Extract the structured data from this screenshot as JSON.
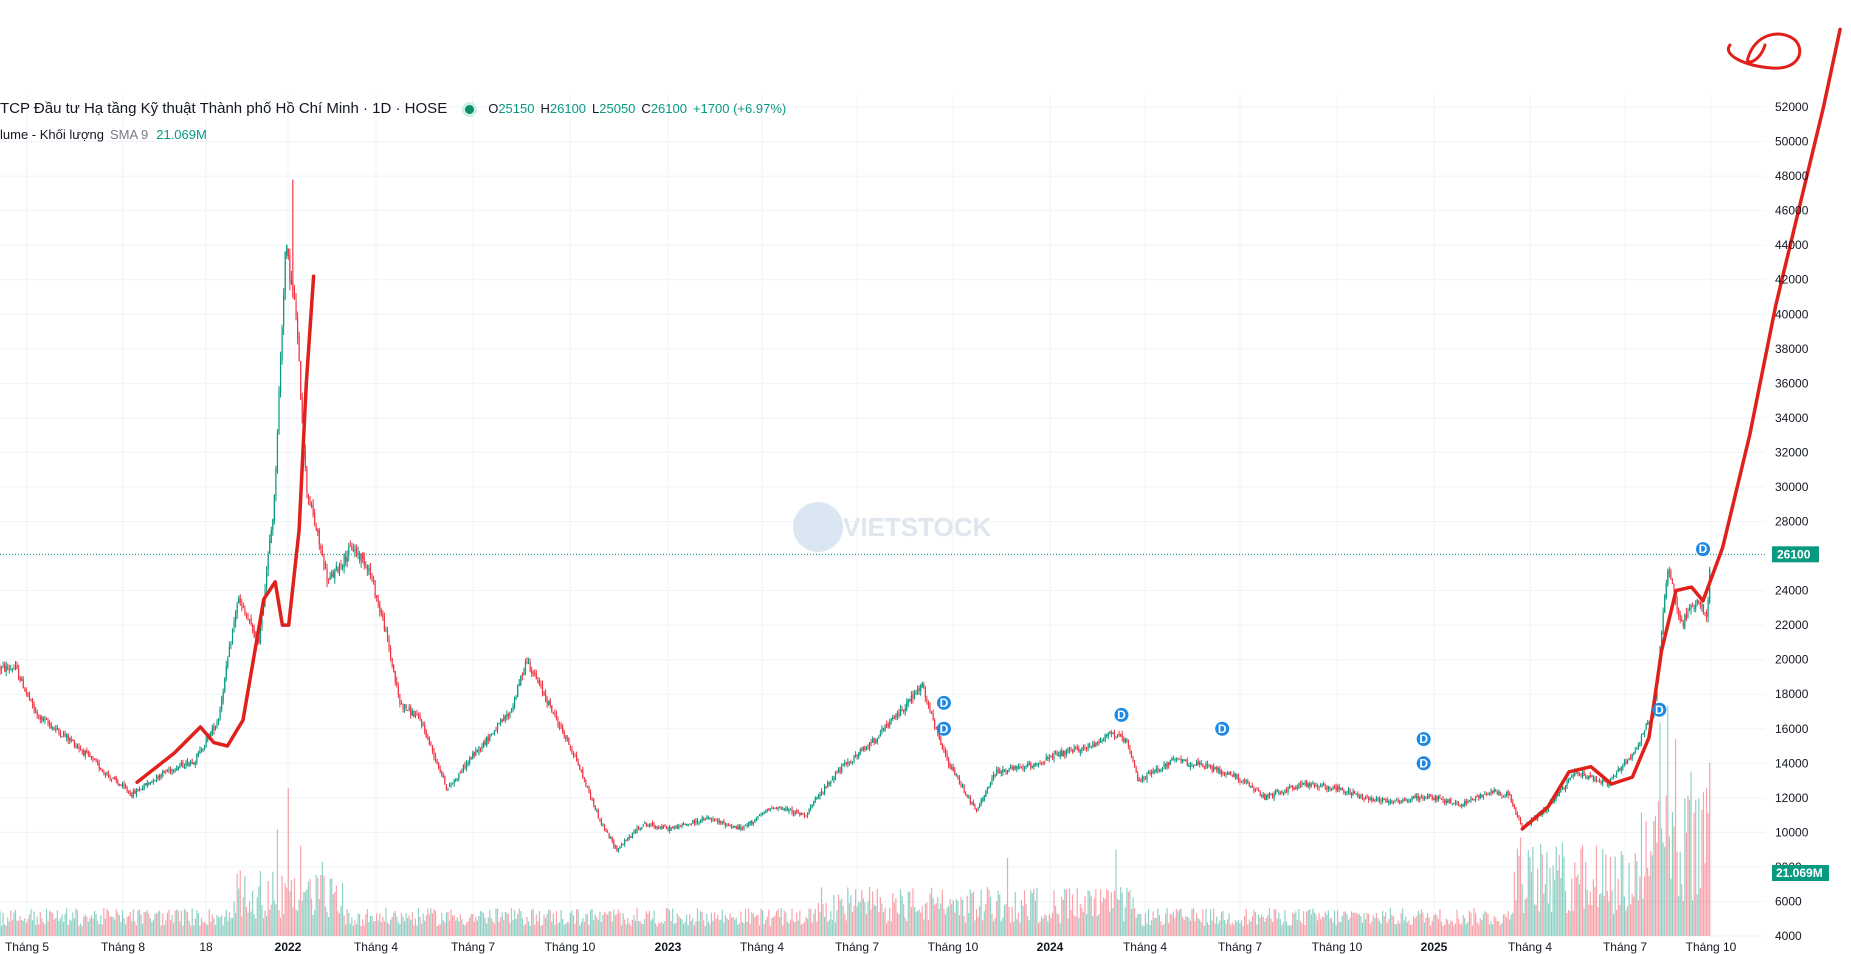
{
  "legend": {
    "title": "TCP Đầu tư Hạ tầng Kỹ thuật Thành phố Hồ Chí Minh · 1D · HOSE",
    "open_key": "O",
    "open": "25150",
    "high_key": "H",
    "high": "26100",
    "low_key": "L",
    "low": "25050",
    "close_key": "C",
    "close": "26100",
    "change": "+1700 (+6.97%)",
    "volume_label": "lume - Khối lượng",
    "sma_label": "SMA 9",
    "volume_value": "21.069M"
  },
  "watermark": "VIETSTOCK",
  "colors": {
    "up": "#089981",
    "down": "#f23645",
    "annotation": "#e0201b",
    "dividend": "#1e88e5",
    "price_line": "#089981"
  },
  "chart_data": {
    "type": "candlestick",
    "y_axis": {
      "min": 4000,
      "max": 53000,
      "ticks": [
        4000,
        6000,
        8000,
        10000,
        12000,
        14000,
        16000,
        18000,
        20000,
        22000,
        24000,
        26000,
        28000,
        30000,
        32000,
        34000,
        36000,
        38000,
        40000,
        42000,
        44000,
        46000,
        48000,
        50000,
        52000
      ]
    },
    "x_axis": {
      "labels": [
        "Tháng 5",
        "Tháng 8",
        "18",
        "2022",
        "Tháng 4",
        "Tháng 7",
        "Tháng 10",
        "2023",
        "Tháng 4",
        "Tháng 7",
        "Tháng 10",
        "2024",
        "Tháng 4",
        "Tháng 7",
        "Tháng 10",
        "2025",
        "Tháng 4",
        "Tháng 7",
        "Tháng 10"
      ],
      "bold": [
        "2022",
        "2023",
        "2024",
        "2025"
      ]
    },
    "last_price": {
      "value": 26100,
      "label": "26100"
    },
    "last_volume": {
      "label": "21.069M"
    },
    "price_path": [
      [
        "2021-04-20",
        19500
      ],
      [
        "2021-05-10",
        16800
      ],
      [
        "2021-06-15",
        15200
      ],
      [
        "2021-07-20",
        13200
      ],
      [
        "2021-08-10",
        12200
      ],
      [
        "2021-09-10",
        13500
      ],
      [
        "2021-10-10",
        14200
      ],
      [
        "2021-11-01",
        16500
      ],
      [
        "2021-11-20",
        23500
      ],
      [
        "2021-12-10",
        21000
      ],
      [
        "2021-12-25",
        29000
      ],
      [
        "2022-01-05",
        44000
      ],
      [
        "2022-01-15",
        40000
      ],
      [
        "2022-01-25",
        30000
      ],
      [
        "2022-02-15",
        24500
      ],
      [
        "2022-03-10",
        26500
      ],
      [
        "2022-03-25",
        25500
      ],
      [
        "2022-04-10",
        22000
      ],
      [
        "2022-04-25",
        17500
      ],
      [
        "2022-05-15",
        16500
      ],
      [
        "2022-06-10",
        12500
      ],
      [
        "2022-07-05",
        14500
      ],
      [
        "2022-08-10",
        17000
      ],
      [
        "2022-08-25",
        20000
      ],
      [
        "2022-09-15",
        17500
      ],
      [
        "2022-10-10",
        14500
      ],
      [
        "2022-11-05",
        10500
      ],
      [
        "2022-11-20",
        9000
      ],
      [
        "2022-12-15",
        10500
      ],
      [
        "2023-01-10",
        10200
      ],
      [
        "2023-02-15",
        10800
      ],
      [
        "2023-03-20",
        10200
      ],
      [
        "2023-04-20",
        11500
      ],
      [
        "2023-05-20",
        11000
      ],
      [
        "2023-06-20",
        13500
      ],
      [
        "2023-07-20",
        15000
      ],
      [
        "2023-08-20",
        17000
      ],
      [
        "2023-09-10",
        18500
      ],
      [
        "2023-09-20",
        16500
      ],
      [
        "2023-10-05",
        14000
      ],
      [
        "2023-10-20",
        12500
      ],
      [
        "2023-11-01",
        11200
      ],
      [
        "2023-11-20",
        13500
      ],
      [
        "2023-12-20",
        13800
      ],
      [
        "2024-01-20",
        14500
      ],
      [
        "2024-02-20",
        15000
      ],
      [
        "2024-03-10",
        15800
      ],
      [
        "2024-03-25",
        15200
      ],
      [
        "2024-04-05",
        13000
      ],
      [
        "2024-05-10",
        14200
      ],
      [
        "2024-06-10",
        13800
      ],
      [
        "2024-07-10",
        13200
      ],
      [
        "2024-08-05",
        12000
      ],
      [
        "2024-09-10",
        12800
      ],
      [
        "2024-10-10",
        12600
      ],
      [
        "2024-11-10",
        12000
      ],
      [
        "2024-12-10",
        11800
      ],
      [
        "2025-01-10",
        12100
      ],
      [
        "2025-02-10",
        11600
      ],
      [
        "2025-03-10",
        12400
      ],
      [
        "2025-03-28",
        12200
      ],
      [
        "2025-04-10",
        10200
      ],
      [
        "2025-05-05",
        11500
      ],
      [
        "2025-06-01",
        13500
      ],
      [
        "2025-07-01",
        12800
      ],
      [
        "2025-07-25",
        14500
      ],
      [
        "2025-08-15",
        17000
      ],
      [
        "2025-08-28",
        25500
      ],
      [
        "2025-09-10",
        22000
      ],
      [
        "2025-09-25",
        23500
      ],
      [
        "2025-10-05",
        22500
      ],
      [
        "2025-10-08",
        26100
      ]
    ],
    "volume_spikes": [
      [
        "2021-12-28",
        13000000
      ],
      [
        "2022-01-08",
        18000000
      ],
      [
        "2022-01-20",
        11000000
      ],
      [
        "2022-02-10",
        9000000
      ],
      [
        "2023-12-01",
        9500000
      ],
      [
        "2024-03-15",
        10500000
      ],
      [
        "2025-04-08",
        12000000
      ],
      [
        "2025-06-20",
        11000000
      ],
      [
        "2025-08-20",
        26000000
      ],
      [
        "2025-08-28",
        28000000
      ],
      [
        "2025-09-05",
        24000000
      ],
      [
        "2025-09-20",
        20000000
      ],
      [
        "2025-10-05",
        18000000
      ],
      [
        "2025-10-08",
        21069000
      ]
    ],
    "dividend_markers": [
      {
        "date": "2023-10-01",
        "price": 17500,
        "label": "D"
      },
      {
        "date": "2023-10-01",
        "price": 16000,
        "label": "D"
      },
      {
        "date": "2024-03-20",
        "price": 16800,
        "label": "D"
      },
      {
        "date": "2024-06-25",
        "price": 16000,
        "label": "D"
      },
      {
        "date": "2025-01-05",
        "price": 15400,
        "label": "D"
      },
      {
        "date": "2025-01-05",
        "price": 14000,
        "label": "D"
      },
      {
        "date": "2025-08-20",
        "price": 17100,
        "label": "D"
      },
      {
        "date": "2025-10-01",
        "price": 26400,
        "label": "D"
      }
    ]
  }
}
